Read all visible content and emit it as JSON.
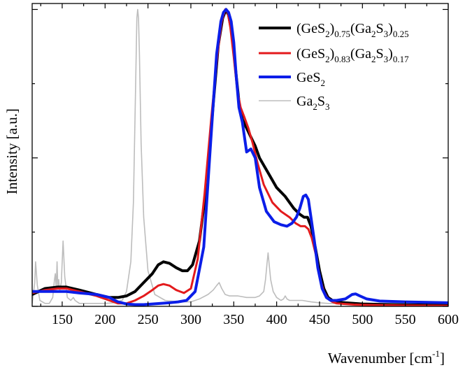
{
  "chart_data": {
    "type": "line",
    "xlabel": "Wavenumber [cm",
    "xlabel_sup": "-1",
    "xlabel_end": "]",
    "ylabel": "Intensity [a.u.]",
    "xlim": [
      115,
      600
    ],
    "ylim": [
      0,
      1.02
    ],
    "x_ticks": [
      150,
      200,
      250,
      300,
      350,
      400,
      450,
      500,
      550,
      600
    ],
    "y_tick_labels_shown": false,
    "grid": false,
    "legend_position": "top-right",
    "series": [
      {
        "name": "(GeS2)0.75(Ga2S3)0.25",
        "legend": {
          "p1": "(GeS",
          "s1": "2",
          "p2": ")",
          "s2": "0.75",
          "p3": "(Ga",
          "s3": "2",
          "p4": "S",
          "s4": "3",
          "p5": ")",
          "s5": "0.25"
        },
        "color": "#000000",
        "x": [
          115,
          130,
          145,
          155,
          170,
          190,
          205,
          215,
          225,
          235,
          245,
          255,
          262,
          268,
          275,
          283,
          290,
          296,
          302,
          310,
          318,
          326,
          332,
          337,
          341,
          344,
          348,
          352,
          356,
          360,
          365,
          370,
          375,
          380,
          390,
          400,
          410,
          420,
          427,
          432,
          436,
          440,
          445,
          450,
          455,
          460,
          465,
          470,
          480,
          490,
          500,
          550,
          600
        ],
        "y": [
          0.04,
          0.06,
          0.065,
          0.065,
          0.055,
          0.04,
          0.03,
          0.03,
          0.035,
          0.05,
          0.08,
          0.11,
          0.14,
          0.15,
          0.145,
          0.13,
          0.12,
          0.12,
          0.14,
          0.22,
          0.4,
          0.68,
          0.88,
          0.97,
          1.0,
          0.98,
          0.92,
          0.8,
          0.69,
          0.63,
          0.6,
          0.57,
          0.54,
          0.5,
          0.45,
          0.4,
          0.37,
          0.33,
          0.31,
          0.3,
          0.3,
          0.27,
          0.2,
          0.12,
          0.06,
          0.03,
          0.02,
          0.015,
          0.012,
          0.01,
          0.008,
          0.005,
          0.004
        ]
      },
      {
        "name": "(GeS2)0.83(Ga2S3)0.17",
        "legend": {
          "p1": "(GeS",
          "s1": "2",
          "p2": ")",
          "s2": "0.83",
          "p3": "(Ga",
          "s3": "2",
          "p4": "S",
          "s4": "3",
          "p5": ")",
          "s5": "0.17"
        },
        "color": "#e31a1c",
        "x": [
          115,
          130,
          145,
          155,
          170,
          190,
          205,
          215,
          225,
          235,
          245,
          255,
          262,
          268,
          275,
          283,
          292,
          300,
          308,
          316,
          324,
          331,
          336,
          340,
          343,
          346,
          350,
          354,
          358,
          362,
          367,
          372,
          378,
          385,
          395,
          405,
          415,
          422,
          428,
          433,
          437,
          441,
          446,
          450,
          455,
          460,
          465,
          470,
          480,
          490,
          500,
          550,
          600
        ],
        "y": [
          0.045,
          0.055,
          0.06,
          0.06,
          0.05,
          0.035,
          0.02,
          0.01,
          0.01,
          0.02,
          0.035,
          0.055,
          0.07,
          0.075,
          0.07,
          0.055,
          0.045,
          0.06,
          0.16,
          0.38,
          0.64,
          0.85,
          0.96,
          1.0,
          0.99,
          0.94,
          0.84,
          0.73,
          0.67,
          0.64,
          0.6,
          0.55,
          0.48,
          0.41,
          0.35,
          0.32,
          0.3,
          0.28,
          0.27,
          0.27,
          0.26,
          0.23,
          0.17,
          0.1,
          0.05,
          0.025,
          0.015,
          0.01,
          0.008,
          0.006,
          0.005,
          0.003,
          0.002
        ]
      },
      {
        "name": "GeS2",
        "legend": {
          "p1": "GeS",
          "s1": "2",
          "p2": "",
          "s2": "",
          "p3": "",
          "s3": "",
          "p4": "",
          "s4": "",
          "p5": "",
          "s5": ""
        },
        "color": "#0b1ee8",
        "x": [
          115,
          130,
          145,
          155,
          170,
          190,
          205,
          215,
          225,
          235,
          245,
          255,
          265,
          275,
          285,
          295,
          305,
          315,
          323,
          330,
          335,
          338,
          341,
          344,
          347,
          350,
          353,
          356,
          360,
          365,
          370,
          375,
          380,
          388,
          397,
          405,
          412,
          418,
          423,
          427,
          431,
          434,
          437,
          440,
          444,
          448,
          453,
          458,
          463,
          470,
          480,
          488,
          492,
          497,
          505,
          520,
          550,
          600
        ],
        "y": [
          0.05,
          0.05,
          0.05,
          0.05,
          0.045,
          0.04,
          0.03,
          0.015,
          0.008,
          0.006,
          0.006,
          0.008,
          0.01,
          0.012,
          0.015,
          0.02,
          0.05,
          0.2,
          0.55,
          0.85,
          0.96,
          0.99,
          1.0,
          0.99,
          0.96,
          0.89,
          0.77,
          0.67,
          0.62,
          0.52,
          0.53,
          0.5,
          0.4,
          0.32,
          0.285,
          0.275,
          0.27,
          0.28,
          0.3,
          0.33,
          0.37,
          0.375,
          0.36,
          0.3,
          0.22,
          0.13,
          0.06,
          0.03,
          0.02,
          0.02,
          0.025,
          0.04,
          0.042,
          0.035,
          0.025,
          0.018,
          0.015,
          0.012
        ]
      },
      {
        "name": "Ga2S3",
        "legend": {
          "p1": "Ga",
          "s1": "2",
          "p2": "S",
          "s2": "3",
          "p3": "",
          "s3": "",
          "p4": "",
          "s4": "",
          "p5": "",
          "s5": ""
        },
        "color": "#bdbdbd",
        "x": [
          115,
          118,
          119,
          121,
          124,
          130,
          135,
          139,
          141,
          142,
          143,
          144,
          145,
          146,
          147,
          149,
          151,
          153,
          156,
          160,
          163,
          165,
          170,
          180,
          190,
          200,
          210,
          220,
          225,
          230,
          233,
          236,
          237,
          238,
          239,
          240,
          242,
          245,
          250,
          258,
          270,
          285,
          300,
          310,
          320,
          326,
          330,
          333,
          336,
          340,
          345,
          355,
          365,
          375,
          380,
          385,
          387,
          389,
          390,
          391,
          393,
          396,
          400,
          405,
          408,
          410,
          412,
          415,
          420,
          430,
          440,
          450,
          460,
          470,
          480,
          500,
          550,
          600
        ],
        "y": [
          0.01,
          0.08,
          0.15,
          0.07,
          0.02,
          0.01,
          0.01,
          0.03,
          0.09,
          0.11,
          0.06,
          0.15,
          0.06,
          0.09,
          0.05,
          0.08,
          0.22,
          0.1,
          0.03,
          0.02,
          0.03,
          0.02,
          0.01,
          0.01,
          0.01,
          0.01,
          0.012,
          0.02,
          0.05,
          0.15,
          0.35,
          0.8,
          0.97,
          1.0,
          0.97,
          0.85,
          0.55,
          0.3,
          0.12,
          0.04,
          0.02,
          0.015,
          0.015,
          0.025,
          0.04,
          0.055,
          0.07,
          0.08,
          0.06,
          0.04,
          0.035,
          0.035,
          0.03,
          0.03,
          0.035,
          0.05,
          0.09,
          0.15,
          0.18,
          0.15,
          0.09,
          0.05,
          0.03,
          0.02,
          0.025,
          0.035,
          0.025,
          0.02,
          0.02,
          0.02,
          0.015,
          0.012,
          0.01,
          0.01,
          0.01,
          0.008,
          0.006,
          0.005
        ]
      }
    ]
  }
}
